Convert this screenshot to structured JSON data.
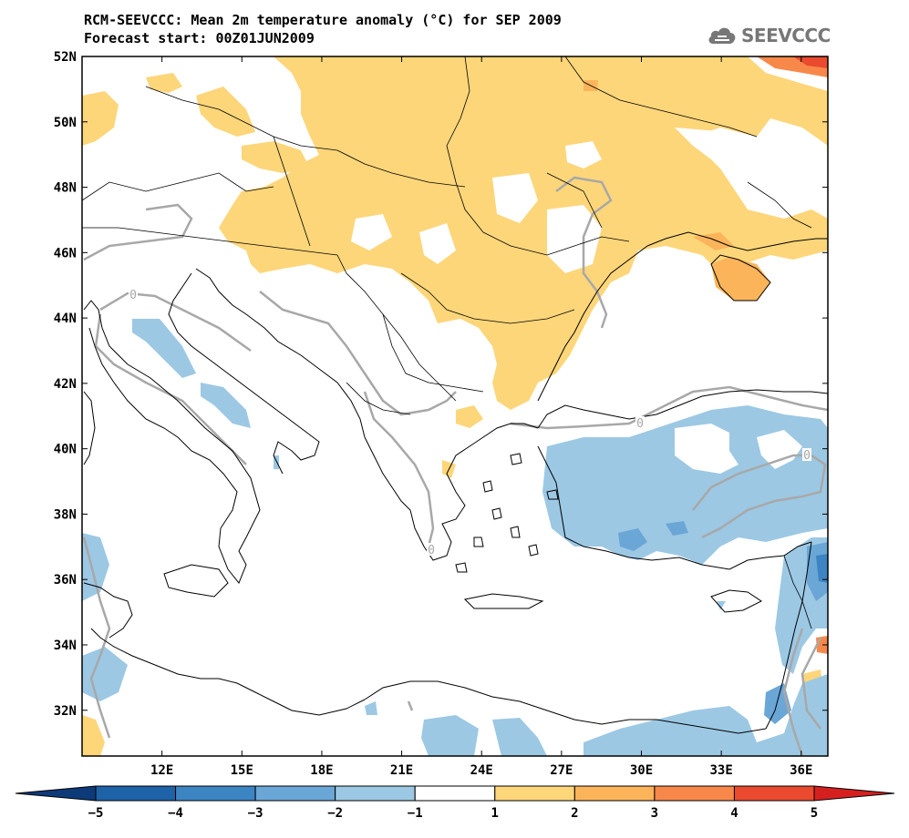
{
  "title": {
    "line1": "RCM-SEEVCCC: Mean 2m temperature anomaly (°C) for SEP 2009",
    "line2": "Forecast start: 00Z01JUN2009"
  },
  "logo": {
    "text": "SEEVCCC",
    "icon": "cloud-icon",
    "color": "#777777"
  },
  "map": {
    "variable": "Mean 2m temperature anomaly",
    "unit": "°C",
    "period": "SEP 2009",
    "lon_range": [
      9.0,
      37.0
    ],
    "lat_range": [
      30.6,
      52.0
    ],
    "lat_ticks": [
      {
        "value": 52,
        "label": "52N"
      },
      {
        "value": 50,
        "label": "50N"
      },
      {
        "value": 48,
        "label": "48N"
      },
      {
        "value": 46,
        "label": "46N"
      },
      {
        "value": 44,
        "label": "44N"
      },
      {
        "value": 42,
        "label": "42N"
      },
      {
        "value": 40,
        "label": "40N"
      },
      {
        "value": 38,
        "label": "38N"
      },
      {
        "value": 36,
        "label": "36N"
      },
      {
        "value": 34,
        "label": "34N"
      },
      {
        "value": 32,
        "label": "32N"
      }
    ],
    "lon_ticks": [
      {
        "value": 12,
        "label": "12E"
      },
      {
        "value": 15,
        "label": "15E"
      },
      {
        "value": 18,
        "label": "18E"
      },
      {
        "value": 21,
        "label": "21E"
      },
      {
        "value": 24,
        "label": "24E"
      },
      {
        "value": 27,
        "label": "27E"
      },
      {
        "value": 30,
        "label": "30E"
      },
      {
        "value": 33,
        "label": "33E"
      },
      {
        "value": 36,
        "label": "36E"
      }
    ],
    "contour_label": "0",
    "contour_color": "#a8a8a8",
    "fields": {
      "warm_1_2": "#fdd67a",
      "warm_2_3": "#fcb45a",
      "warm_3_4": "#f8884a",
      "warm_4_5": "#ea4a2e",
      "cool_1_2": "#9cc8e4",
      "cool_2_3": "#6aa6d6",
      "cool_3_4": "#3d84c3"
    }
  },
  "colorbar": {
    "labels": [
      "−5",
      "−4",
      "−3",
      "−2",
      "−1",
      "1",
      "2",
      "3",
      "4",
      "5"
    ],
    "colors": [
      "#0d3a78",
      "#1e62a8",
      "#3d84c3",
      "#6aa6d6",
      "#9cc8e4",
      "#ffffff",
      "#fdd67a",
      "#fcb45a",
      "#f8884a",
      "#ea4a2e",
      "#d62020"
    ]
  }
}
